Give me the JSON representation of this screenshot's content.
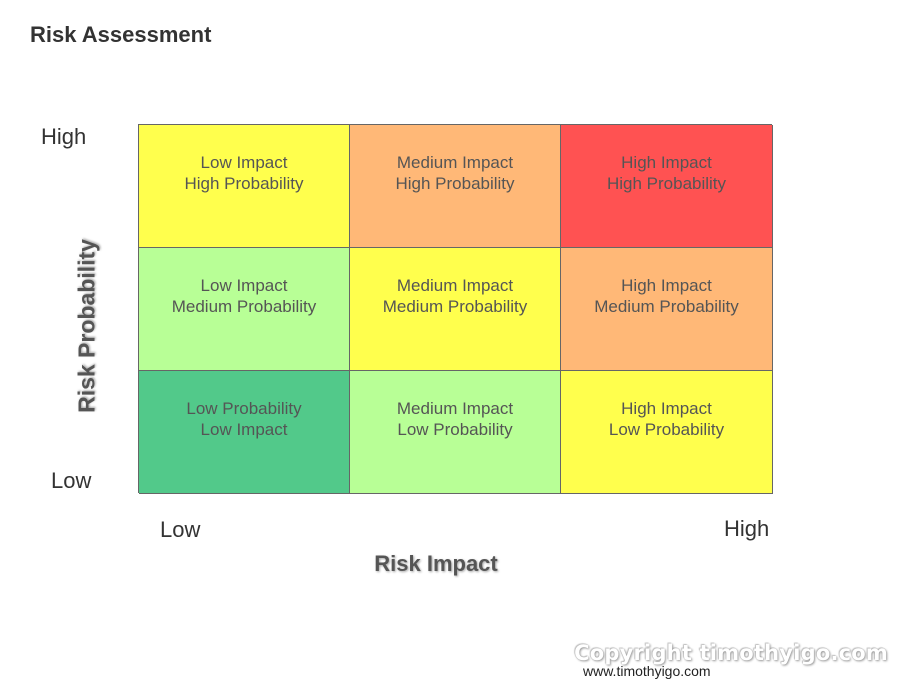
{
  "title": "Risk Assessment",
  "y_axis": {
    "title": "Risk Probability",
    "high_label": "High",
    "low_label": "Low"
  },
  "x_axis": {
    "title": "Risk Impact",
    "low_label": "Low",
    "high_label": "High"
  },
  "matrix": {
    "rows": [
      [
        {
          "line1": "Low Impact",
          "line2": "High Probability",
          "color": "#ffff4d"
        },
        {
          "line1": "Medium Impact",
          "line2": "High Probability",
          "color": "#ffb877"
        },
        {
          "line1": "High Impact",
          "line2": "High Probability",
          "color": "#ff5252"
        }
      ],
      [
        {
          "line1": "Low Impact",
          "line2": "Medium Probability",
          "color": "#b8ff96"
        },
        {
          "line1": "Medium Impact",
          "line2": "Medium Probability",
          "color": "#ffff4d"
        },
        {
          "line1": "High Impact",
          "line2": "Medium Probability",
          "color": "#ffb877"
        }
      ],
      [
        {
          "line1": "Low Probability",
          "line2": "Low Impact",
          "color": "#52c98a"
        },
        {
          "line1": "Medium Impact",
          "line2": "Low Probability",
          "color": "#b8ff96"
        },
        {
          "line1": "High Impact",
          "line2": "Low Probability",
          "color": "#ffff4d"
        }
      ]
    ]
  },
  "watermark": "Copyright timothyigo.com",
  "website": "www.timothyigo.com"
}
